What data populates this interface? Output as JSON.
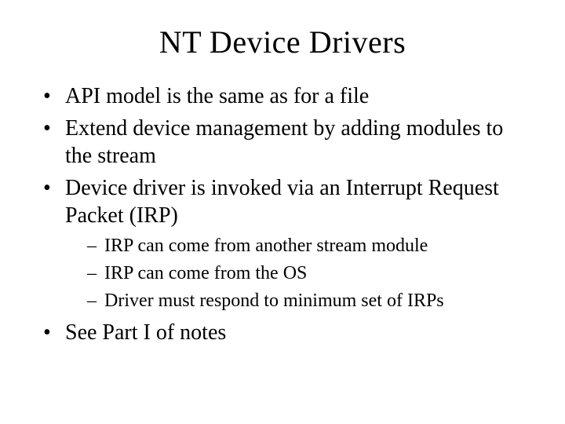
{
  "slide": {
    "title": "NT Device Drivers",
    "title_fontsize": 40,
    "title_align": "center",
    "background_color": "#ffffff",
    "text_color": "#000000",
    "font_family": "Times New Roman",
    "bullets": {
      "b1": "API model is the same as for a file",
      "b2": "Extend device management by adding modules to the stream",
      "b3": "Device driver is invoked via an Interrupt Request Packet (IRP)",
      "b3_sub": {
        "s1": "IRP can come from another stream module",
        "s2": "IRP can come from the OS",
        "s3": "Driver must respond to minimum set of IRPs"
      },
      "b4": "See Part I of notes"
    },
    "level1_fontsize": 28,
    "level2_fontsize": 24,
    "level1_marker": "•",
    "level2_marker": "–"
  }
}
